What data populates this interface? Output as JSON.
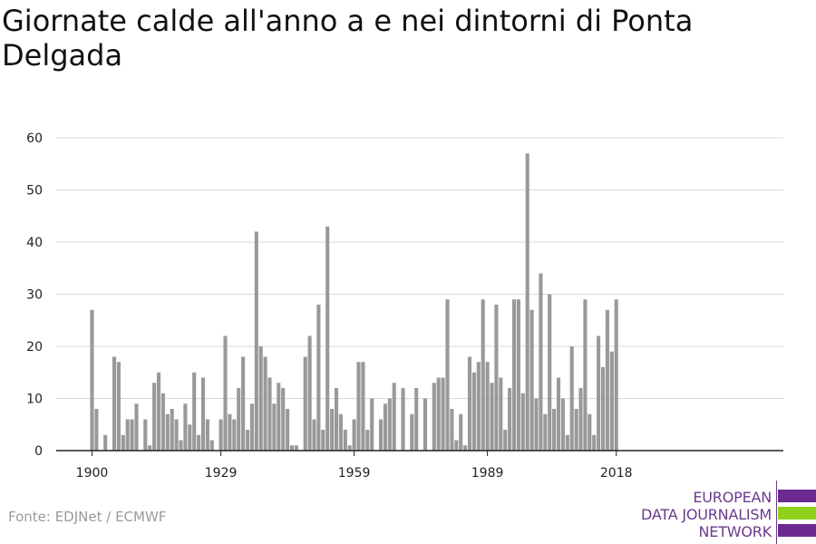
{
  "title": "Giornate calde all'anno a e nei dintorni di Ponta Delgada",
  "source": "Fonte: EDJNet / ECMWF",
  "logo": {
    "line1": "EUROPEAN",
    "line2": "DATA JOURNALISM",
    "line3": "NETWORK",
    "colors": {
      "purple": "#6b2a8f",
      "green": "#8fd11c"
    }
  },
  "chart_data": {
    "type": "bar",
    "title": "Giornate calde all'anno a e nei dintorni di Ponta Delgada",
    "xlabel": "",
    "ylabel": "",
    "ylim": [
      0,
      60
    ],
    "yticks": [
      0,
      10,
      20,
      30,
      40,
      50,
      60
    ],
    "xticks": [
      1900,
      1929,
      1959,
      1989,
      2018
    ],
    "grid": true,
    "bar_color": "#999999",
    "x": [
      1900,
      1901,
      1902,
      1903,
      1904,
      1905,
      1906,
      1907,
      1908,
      1909,
      1910,
      1911,
      1912,
      1913,
      1914,
      1915,
      1916,
      1917,
      1918,
      1919,
      1920,
      1921,
      1922,
      1923,
      1924,
      1925,
      1926,
      1927,
      1928,
      1929,
      1930,
      1931,
      1932,
      1933,
      1934,
      1935,
      1936,
      1937,
      1938,
      1939,
      1940,
      1941,
      1942,
      1943,
      1944,
      1945,
      1946,
      1947,
      1948,
      1949,
      1950,
      1951,
      1952,
      1953,
      1954,
      1955,
      1956,
      1957,
      1958,
      1959,
      1960,
      1961,
      1962,
      1963,
      1964,
      1965,
      1966,
      1967,
      1968,
      1969,
      1970,
      1971,
      1972,
      1973,
      1974,
      1975,
      1976,
      1977,
      1978,
      1979,
      1980,
      1981,
      1982,
      1983,
      1984,
      1985,
      1986,
      1987,
      1988,
      1989,
      1990,
      1991,
      1992,
      1993,
      1994,
      1995,
      1996,
      1997,
      1998,
      1999,
      2000,
      2001,
      2002,
      2003,
      2004,
      2005,
      2006,
      2007,
      2008,
      2009,
      2010,
      2011,
      2012,
      2013,
      2014,
      2015,
      2016,
      2017,
      2018
    ],
    "values": [
      27,
      8,
      0,
      3,
      0,
      18,
      17,
      3,
      6,
      6,
      9,
      0,
      6,
      1,
      13,
      15,
      11,
      7,
      8,
      6,
      2,
      9,
      5,
      15,
      3,
      14,
      6,
      2,
      0,
      6,
      22,
      7,
      6,
      12,
      18,
      4,
      9,
      42,
      20,
      18,
      14,
      9,
      13,
      12,
      8,
      1,
      1,
      0,
      18,
      22,
      6,
      28,
      4,
      43,
      8,
      12,
      7,
      4,
      1,
      6,
      17,
      17,
      4,
      10,
      0,
      6,
      9,
      10,
      13,
      0,
      12,
      0,
      7,
      12,
      0,
      10,
      0,
      13,
      14,
      14,
      29,
      8,
      2,
      7,
      1,
      18,
      15,
      17,
      29,
      17,
      13,
      28,
      14,
      4,
      12,
      29,
      29,
      11,
      57,
      27,
      10,
      34,
      7,
      30,
      8,
      14,
      10,
      3,
      20,
      8,
      12,
      29,
      7,
      3,
      22,
      16,
      27,
      19,
      29
    ]
  }
}
